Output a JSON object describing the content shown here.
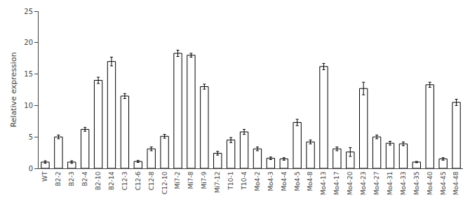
{
  "chart_data": {
    "type": "bar",
    "ylabel": "Relative expression",
    "categories": [
      "WT",
      "B2-2",
      "B2-3",
      "B2-4",
      "B2-10",
      "B2-14",
      "C12-3",
      "C12-6",
      "C12-8",
      "C12-10",
      "Mi7-2",
      "Mi7-8",
      "Mi7-9",
      "Mi7-12",
      "T10-1",
      "T10-4",
      "Mo4-2",
      "Mo4-3",
      "Mo4-4",
      "Mo4-5",
      "Mo4-8",
      "Mo4-13",
      "Mo4-17",
      "Mo4-20",
      "Mo4-23",
      "Mo4-27",
      "Mo4-31",
      "Mo4-33",
      "Mo4-35",
      "Mo4-40",
      "Mo4-45",
      "Mo4-48"
    ],
    "values": [
      1.0,
      5.0,
      1.0,
      6.2,
      14.0,
      17.0,
      11.5,
      1.1,
      3.1,
      5.1,
      18.3,
      18.0,
      13.0,
      2.4,
      4.5,
      5.8,
      3.1,
      1.6,
      1.5,
      7.3,
      4.2,
      16.2,
      3.1,
      2.6,
      12.7,
      5.0,
      4.0,
      3.9,
      1.0,
      13.3,
      1.5,
      10.5
    ],
    "errors": [
      0.2,
      0.3,
      0.2,
      0.3,
      0.5,
      0.7,
      0.4,
      0.15,
      0.3,
      0.3,
      0.5,
      0.3,
      0.4,
      0.3,
      0.4,
      0.4,
      0.3,
      0.2,
      0.2,
      0.5,
      0.3,
      0.5,
      0.3,
      0.7,
      1.0,
      0.3,
      0.3,
      0.3,
      0.1,
      0.4,
      0.2,
      0.5
    ],
    "color": "#ffffff",
    "ylim": [
      0,
      25
    ],
    "yticks": [
      0,
      5,
      10,
      15,
      20,
      25
    ],
    "grid": false
  }
}
